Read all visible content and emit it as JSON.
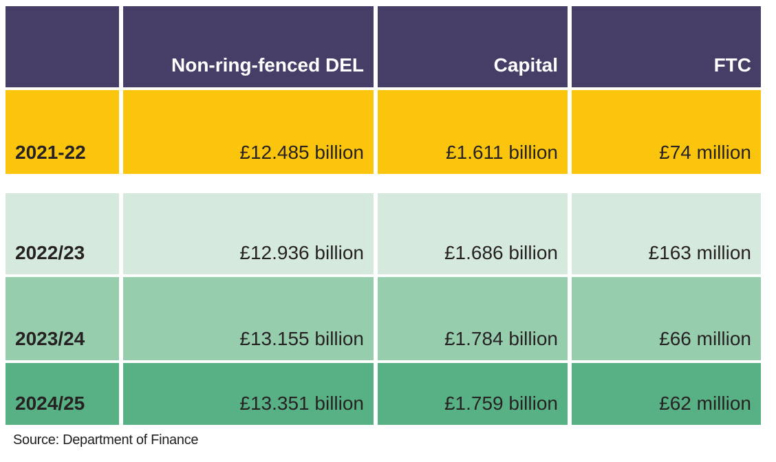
{
  "chart_data": {
    "type": "table",
    "columns": [
      "",
      "Non-ring-fenced DEL",
      "Capital",
      "FTC"
    ],
    "rows": [
      [
        "2021-22",
        "£12.485 billion",
        "£1.611 billion",
        "£74 million"
      ],
      [
        "2022/23",
        "£12.936 billion",
        "£1.686 billion",
        "£163 million"
      ],
      [
        "2023/24",
        "£13.155 billion",
        "£1.784 billion",
        "£66 million"
      ],
      [
        "2024/25",
        "£13.351 billion",
        "£1.759 billion",
        "£62 million"
      ]
    ],
    "numeric": {
      "years": [
        "2021-22",
        "2022/23",
        "2023/24",
        "2024/25"
      ],
      "non_ring_fenced_del_billion": [
        12.485,
        12.936,
        13.155,
        13.351
      ],
      "capital_billion": [
        1.611,
        1.686,
        1.784,
        1.759
      ],
      "ftc_million": [
        74,
        163,
        66,
        62
      ]
    },
    "source": "Source: Department of Finance"
  },
  "colors": {
    "header_bg": "#473E68",
    "header_text": "#FFFFFF",
    "row_2021_bg": "#FBC40D",
    "row_2022_bg": "#D5E9DD",
    "row_2023_bg": "#96CDAD",
    "row_2024_bg": "#58B184",
    "cell_text": "#262223",
    "source_text": "#1D1D1B",
    "gap": "#FFFFFF"
  }
}
